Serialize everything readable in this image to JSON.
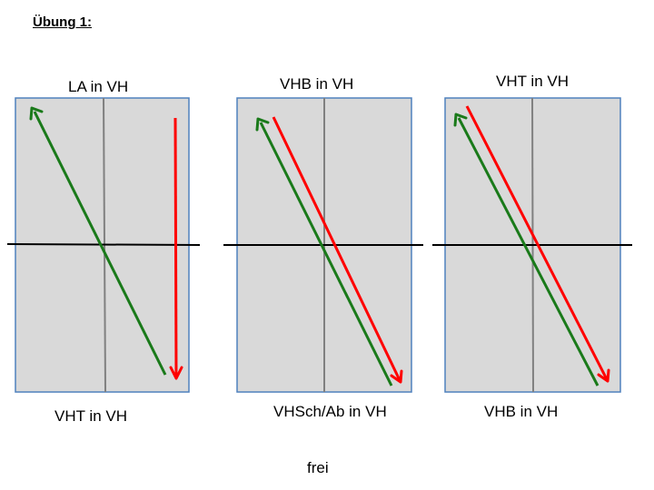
{
  "heading": "Übung 1:",
  "panels": [
    {
      "top_label": "LA in VH",
      "bottom_label": "VHT in VH"
    },
    {
      "top_label": "VHB in VH",
      "bottom_label": "VHSch/Ab in VH"
    },
    {
      "top_label": "VHT in VH",
      "bottom_label": "VHB in VH"
    }
  ],
  "footer": "frei",
  "colors": {
    "panel_fill": "#d9d9d9",
    "panel_border": "#4f81bd",
    "center_line": "#808080",
    "horizontal_line": "#000000",
    "green_arrow": "#1a7a1a",
    "red_arrow": "#ff0000"
  }
}
